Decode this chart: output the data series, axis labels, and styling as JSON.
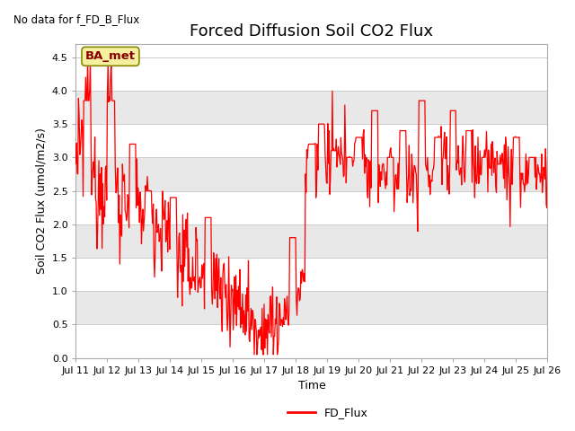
{
  "title": "Forced Diffusion Soil CO2 Flux",
  "no_data_text": "No data for f_FD_B_Flux",
  "ba_met_label": "BA_met",
  "xlabel": "Time",
  "ylabel_display": "Soil CO2 Flux (umol/m2/s)",
  "legend_label": "FD_Flux",
  "ylim": [
    0.0,
    4.7
  ],
  "yticks": [
    0.0,
    0.5,
    1.0,
    1.5,
    2.0,
    2.5,
    3.0,
    3.5,
    4.0,
    4.5
  ],
  "line_color": "#ff0000",
  "bg_color": "#ffffff",
  "title_fontsize": 13,
  "label_fontsize": 9,
  "tick_fontsize": 8,
  "start_day": 11,
  "end_day": 26,
  "points_per_day": 48,
  "band_colors": [
    "#ffffff",
    "#e8e8e8"
  ],
  "grid_color": "#cccccc"
}
